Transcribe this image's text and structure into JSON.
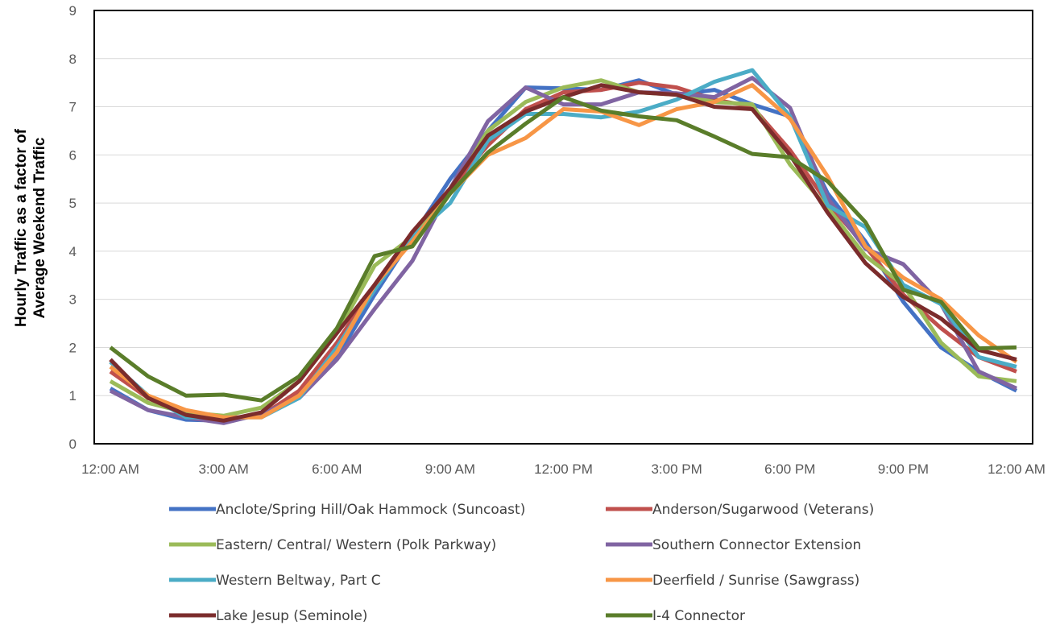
{
  "chart_data": {
    "type": "line",
    "title": "",
    "xlabel": "",
    "ylabel": [
      "Hourly Traffic as a factor of",
      "Average Weekend Traffic"
    ],
    "ylim": [
      0,
      9
    ],
    "y_ticks": [
      "0",
      "1",
      "2",
      "3",
      "4",
      "5",
      "6",
      "7",
      "8",
      "9"
    ],
    "x_tick_labels": [
      "12:00 AM",
      "3:00 AM",
      "6:00 AM",
      "9:00 AM",
      "12:00 PM",
      "3:00 PM",
      "6:00 PM",
      "9:00 PM",
      "12:00 AM"
    ],
    "x_tick_hours": [
      0,
      3,
      6,
      9,
      12,
      15,
      18,
      21,
      24
    ],
    "x_hours": [
      0,
      1,
      2,
      3,
      4,
      5,
      6,
      7,
      8,
      9,
      10,
      11,
      12,
      13,
      14,
      15,
      16,
      17,
      18,
      19,
      20,
      21,
      22,
      23,
      24
    ],
    "grid": true,
    "legend_position": "bottom",
    "series": [
      {
        "name": "Anclote/Spring Hill/Oak Hammock (Suncoast)",
        "color": "#4472c4",
        "values": [
          1.15,
          0.7,
          0.5,
          0.48,
          0.6,
          1.0,
          1.8,
          3.1,
          4.3,
          5.5,
          6.5,
          7.4,
          7.38,
          7.35,
          7.55,
          7.25,
          7.35,
          7.05,
          6.8,
          5.2,
          4.2,
          2.95,
          2.0,
          1.5,
          1.1
        ]
      },
      {
        "name": "Anderson/Sugarwood (Veterans)",
        "color": "#c0504d",
        "values": [
          1.5,
          0.95,
          0.65,
          0.5,
          0.58,
          1.1,
          2.1,
          3.3,
          4.4,
          5.3,
          6.2,
          6.95,
          7.3,
          7.35,
          7.5,
          7.4,
          7.15,
          7.0,
          6.1,
          5.0,
          4.1,
          3.1,
          2.4,
          1.8,
          1.5
        ]
      },
      {
        "name": "Eastern/ Central/ Western (Polk Parkway)",
        "color": "#9bbb59",
        "values": [
          1.3,
          0.85,
          0.65,
          0.58,
          0.75,
          1.3,
          2.3,
          3.7,
          4.3,
          5.3,
          6.5,
          7.1,
          7.4,
          7.55,
          7.3,
          7.25,
          7.1,
          7.05,
          5.8,
          4.9,
          3.9,
          3.3,
          2.1,
          1.4,
          1.3
        ]
      },
      {
        "name": "Southern Connector Extension",
        "color": "#8064a2",
        "values": [
          1.1,
          0.7,
          0.55,
          0.43,
          0.62,
          0.95,
          1.75,
          2.8,
          3.8,
          5.3,
          6.7,
          7.4,
          7.05,
          7.05,
          7.3,
          7.28,
          7.2,
          7.6,
          6.98,
          5.1,
          4.05,
          3.73,
          2.9,
          1.5,
          1.15
        ]
      },
      {
        "name": "Western Beltway, Part C",
        "color": "#4bacc6",
        "values": [
          1.7,
          1.0,
          0.55,
          0.55,
          0.55,
          0.95,
          2.0,
          3.2,
          4.3,
          5.0,
          6.3,
          6.85,
          6.85,
          6.78,
          6.9,
          7.15,
          7.52,
          7.76,
          6.8,
          4.95,
          4.5,
          3.3,
          2.9,
          1.8,
          1.6
        ]
      },
      {
        "name": "Deerfield /  Sunrise (Sawgrass)",
        "color": "#f79646",
        "values": [
          1.6,
          1.0,
          0.7,
          0.55,
          0.55,
          1.0,
          1.9,
          3.3,
          4.2,
          5.2,
          6.0,
          6.35,
          6.95,
          6.9,
          6.62,
          6.95,
          7.1,
          7.45,
          6.75,
          5.55,
          4.1,
          3.45,
          3.0,
          2.25,
          1.7
        ]
      },
      {
        "name": "Lake Jesup (Seminole)",
        "color": "#7b2c2c",
        "values": [
          1.75,
          0.95,
          0.6,
          0.48,
          0.65,
          1.3,
          2.3,
          3.3,
          4.4,
          5.3,
          6.4,
          6.9,
          7.2,
          7.45,
          7.3,
          7.25,
          7.0,
          6.95,
          6.0,
          4.8,
          3.75,
          3.05,
          2.6,
          1.95,
          1.75
        ]
      },
      {
        "name": "I-4 Connector",
        "color": "#5a7d2a",
        "values": [
          2.0,
          1.4,
          1.0,
          1.02,
          0.9,
          1.4,
          2.4,
          3.9,
          4.1,
          5.2,
          6.05,
          6.65,
          7.2,
          6.92,
          6.8,
          6.72,
          6.38,
          6.02,
          5.95,
          5.45,
          4.6,
          3.2,
          2.95,
          1.98,
          2.0
        ]
      }
    ]
  }
}
